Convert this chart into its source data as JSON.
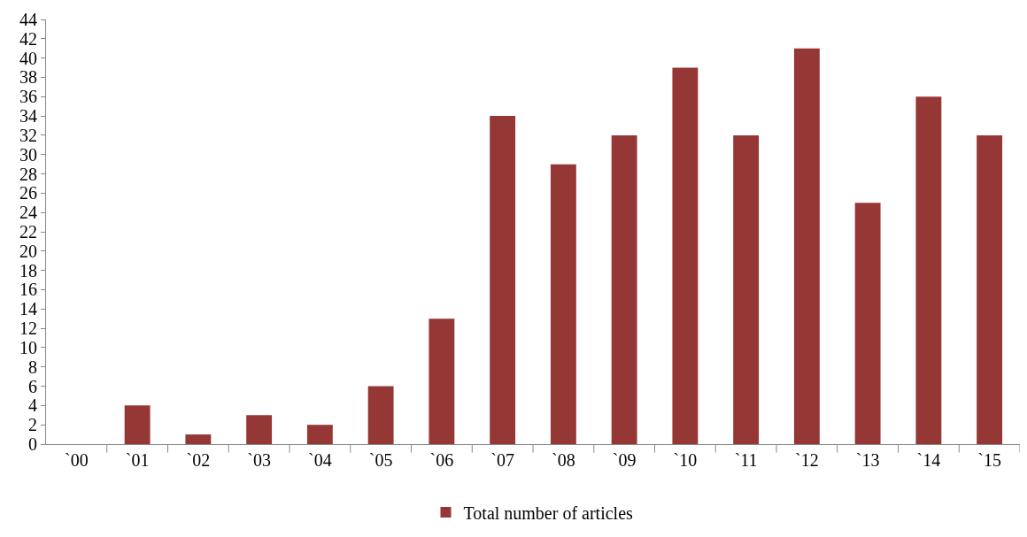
{
  "chart_data": {
    "type": "bar",
    "categories": [
      "`00",
      "`01",
      "`02",
      "`03",
      "`04",
      "`05",
      "`06",
      "`07",
      "`08",
      "`09",
      "`10",
      "`11",
      "`12",
      "`13",
      "`14",
      "`15"
    ],
    "series": [
      {
        "name": "Total number of articles",
        "color": "#953735",
        "values": [
          0,
          4,
          1,
          3,
          2,
          6,
          13,
          34,
          29,
          32,
          39,
          32,
          41,
          25,
          36,
          32
        ]
      }
    ],
    "ylim": [
      0,
      44
    ],
    "yticks": [
      0,
      2,
      4,
      6,
      8,
      10,
      12,
      14,
      16,
      18,
      20,
      22,
      24,
      26,
      28,
      30,
      32,
      34,
      36,
      38,
      40,
      42,
      44
    ],
    "grid": false,
    "legend": "bottom"
  }
}
